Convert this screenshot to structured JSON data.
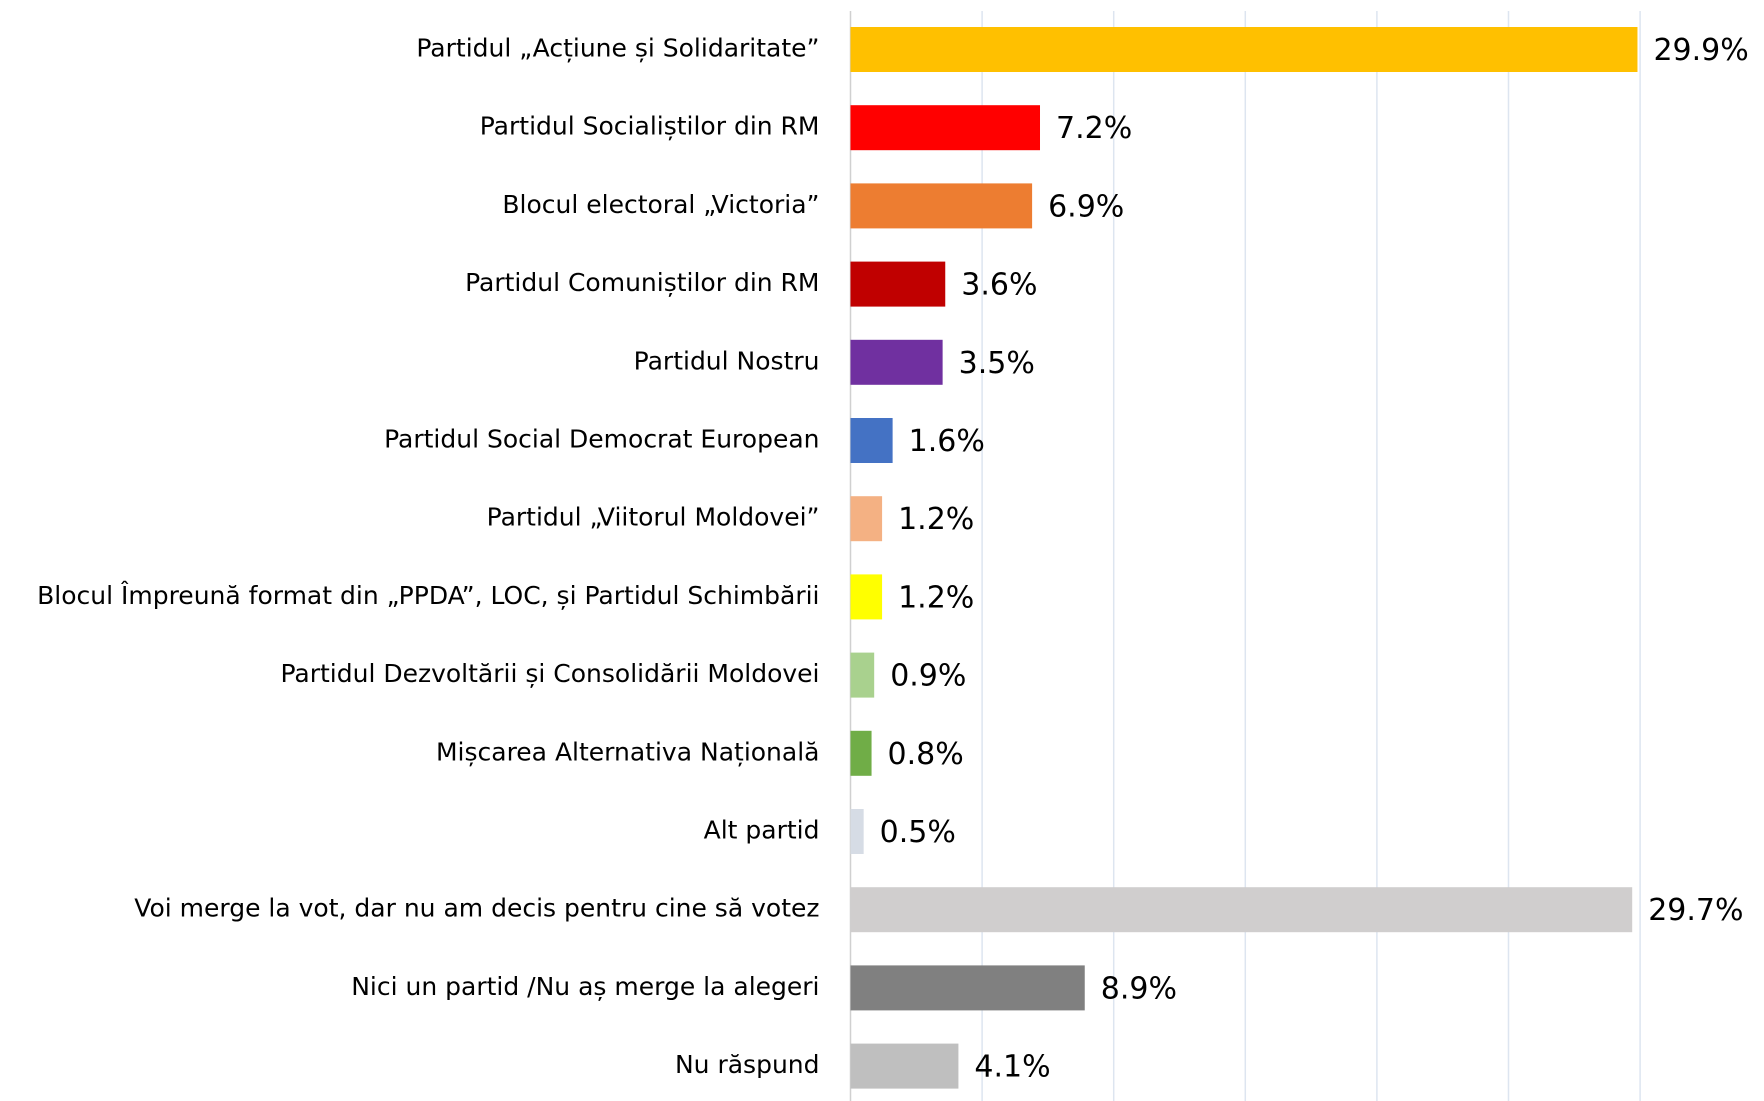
{
  "chart_data": {
    "type": "barh",
    "categories": [
      "Partidul „Acțiune și Solidaritate”",
      "Partidul Socialiștilor din RM",
      "Blocul electoral „Victoria”",
      "Partidul Comuniștilor din RM",
      "Partidul Nostru",
      "Partidul Social Democrat European",
      "Partidul „Viitorul Moldovei”",
      "Blocul Împreună format din „PPDA”, LOC, și Partidul Schimbării",
      "Partidul Dezvoltării și Consolidării Moldovei",
      "Mișcarea Alternativa Națională",
      "Alt partid",
      "Voi merge la vot, dar nu am decis pentru cine să votez",
      "Nici un partid /Nu aș merge la alegeri",
      "Nu răspund"
    ],
    "values": [
      29.9,
      7.2,
      6.9,
      3.6,
      3.5,
      1.6,
      1.2,
      1.2,
      0.9,
      0.8,
      0.5,
      29.7,
      8.9,
      4.1
    ],
    "value_labels": [
      "29.9%",
      "7.2%",
      "6.9%",
      "3.6%",
      "3.5%",
      "1.6%",
      "1.2%",
      "1.2%",
      "0.9%",
      "0.8%",
      "0.5%",
      "29.7%",
      "8.9%",
      "4.1%"
    ],
    "colors": [
      "#FFC000",
      "#FF0000",
      "#ED7D31",
      "#C00000",
      "#7030A0",
      "#4472C4",
      "#F4B183",
      "#FFFF00",
      "#A9D18E",
      "#70AD47",
      "#D6DCE5",
      "#D0CECE",
      "#808080",
      "#BFBFBF"
    ],
    "xlim": [
      0,
      35
    ],
    "xticks": [
      0,
      5,
      10,
      15,
      20,
      25,
      30
    ],
    "grid": true
  }
}
